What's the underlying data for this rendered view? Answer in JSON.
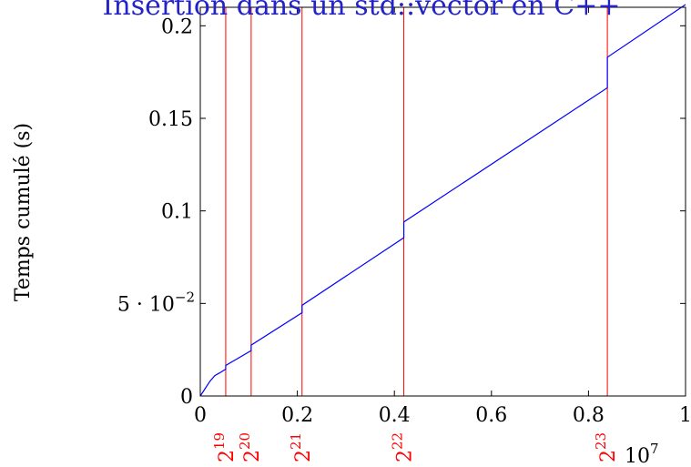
{
  "chart_data": {
    "type": "line",
    "title": "Insertion dans un std::vector en C++",
    "xlabel": "",
    "ylabel": "Temps cumulé (s)",
    "xlim": [
      0,
      10000000
    ],
    "ylim": [
      0,
      0.21
    ],
    "x_scale_label": "10",
    "x_scale_exp": "7",
    "x_ticks": [
      0,
      2000000,
      4000000,
      6000000,
      8000000,
      10000000
    ],
    "x_tick_labels": [
      "0",
      "0.2",
      "0.4",
      "0.6",
      "0.8",
      "1"
    ],
    "y_ticks": [
      0,
      0.05,
      0.1,
      0.15,
      0.2
    ],
    "y_tick_labels": [
      "0",
      "5 · 10",
      "0.1",
      "0.15",
      "0.2"
    ],
    "y_tick_exponent_for_0_05": "−2",
    "series": [
      {
        "color": "#0000ff",
        "points": [
          [
            0,
            0
          ],
          [
            100000,
            0.004
          ],
          [
            200000,
            0.008
          ],
          [
            300000,
            0.011
          ],
          [
            400000,
            0.0125
          ],
          [
            524288,
            0.0145
          ],
          [
            524288,
            0.0165
          ],
          [
            1048576,
            0.0245
          ],
          [
            1048576,
            0.0275
          ],
          [
            2097152,
            0.045
          ],
          [
            2097152,
            0.049
          ],
          [
            4194304,
            0.0855
          ],
          [
            4194304,
            0.094
          ],
          [
            8388608,
            0.1665
          ],
          [
            8388608,
            0.183
          ],
          [
            10000000,
            0.2115
          ]
        ]
      }
    ],
    "vlines": {
      "color": "#ff0000",
      "positions": [
        524288,
        1048576,
        2097152,
        4194304,
        8388608
      ],
      "labels": [
        {
          "base": "2",
          "exp": "19"
        },
        {
          "base": "2",
          "exp": "20"
        },
        {
          "base": "2",
          "exp": "21"
        },
        {
          "base": "2",
          "exp": "22"
        },
        {
          "base": "2",
          "exp": "23"
        }
      ]
    },
    "grid": false,
    "legend": "none"
  }
}
